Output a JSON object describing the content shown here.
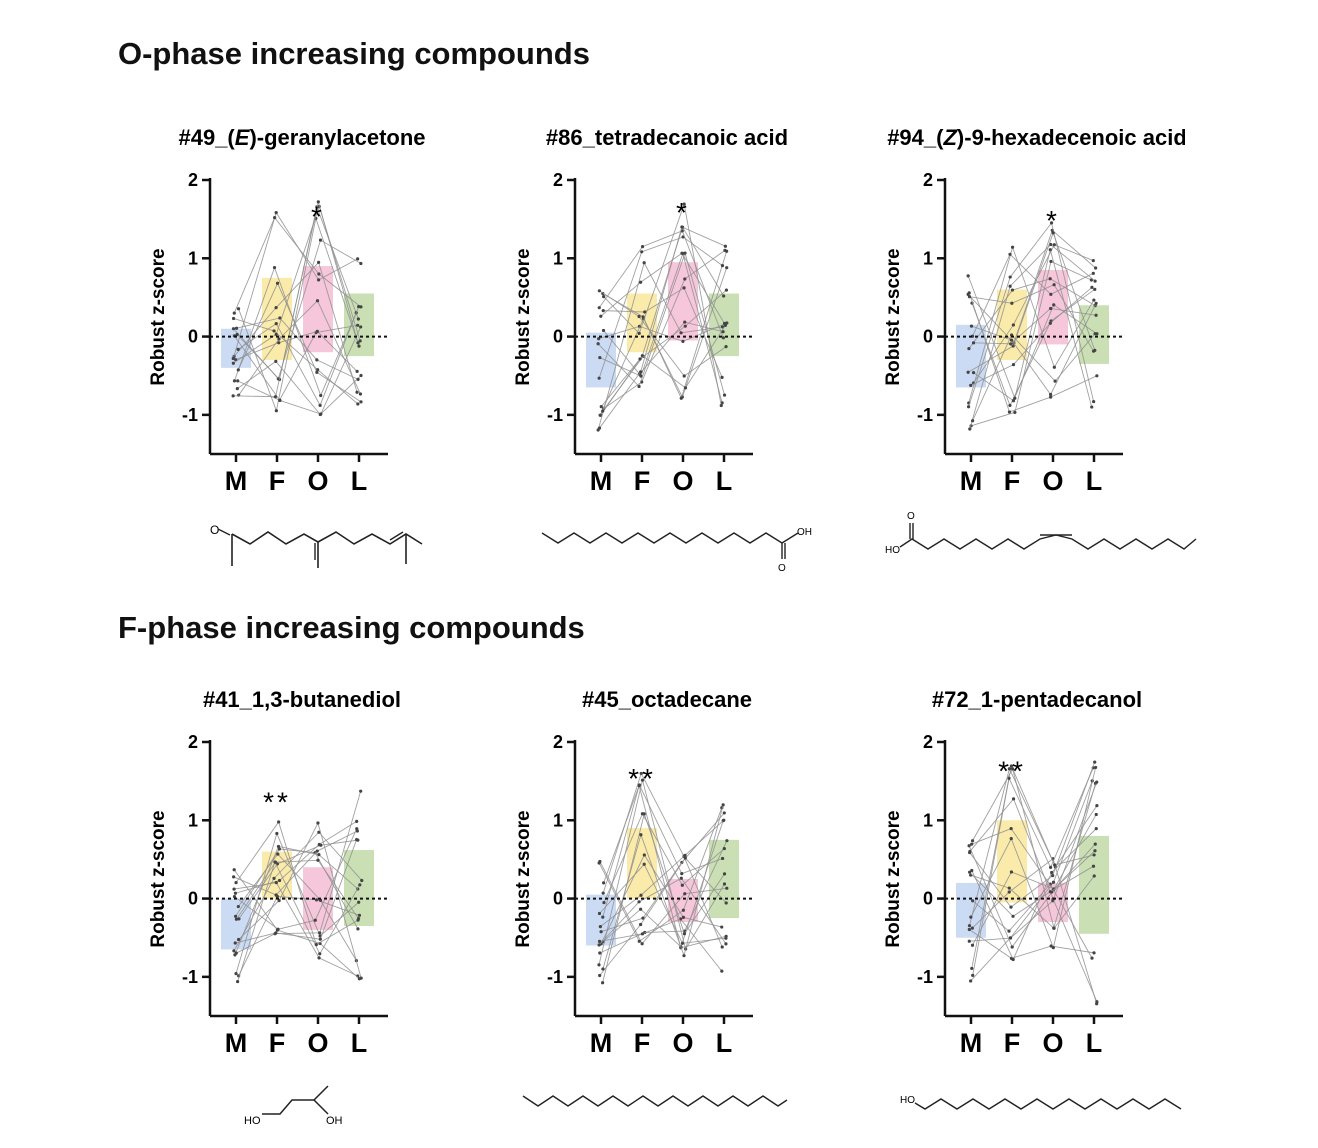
{
  "sections": [
    {
      "title": "O-phase increasing compounds"
    },
    {
      "title": "F-phase increasing compounds"
    }
  ],
  "ylabel": "Robust z-score",
  "chart_data": [
    {
      "type": "bar",
      "title": "#49_(E)-geranylacetone",
      "title_parts": [
        "#49_(",
        "E",
        ")-geranylacetone"
      ],
      "categories": [
        "M",
        "F",
        "O",
        "L"
      ],
      "ylabel": "Robust z-score",
      "ylim": [
        -1.5,
        2
      ],
      "yticks": [
        "2",
        "1",
        "0",
        "-1"
      ],
      "bars": [
        {
          "low": -0.4,
          "high": 0.1
        },
        {
          "low": -0.3,
          "high": 0.75
        },
        {
          "low": -0.2,
          "high": 0.9
        },
        {
          "low": -0.25,
          "high": 0.55
        }
      ],
      "significance": {
        "category": "O",
        "label": "*"
      },
      "colors": [
        "#c9d9f3",
        "#fbeaa6",
        "#f6c3d8",
        "#c7deb0"
      ],
      "structure_labels": [
        "O"
      ]
    },
    {
      "type": "bar",
      "title": "#86_tetradecanoic acid",
      "title_parts": [
        "#86_tetradecanoic acid",
        "",
        ""
      ],
      "categories": [
        "M",
        "F",
        "O",
        "L"
      ],
      "ylabel": "Robust z-score",
      "ylim": [
        -1.5,
        2
      ],
      "yticks": [
        "2",
        "1",
        "0",
        "-1"
      ],
      "bars": [
        {
          "low": -0.65,
          "high": 0.05
        },
        {
          "low": -0.2,
          "high": 0.55
        },
        {
          "low": -0.05,
          "high": 0.95
        },
        {
          "low": -0.25,
          "high": 0.55
        }
      ],
      "significance": {
        "category": "O",
        "label": "*"
      },
      "colors": [
        "#c9d9f3",
        "#fbeaa6",
        "#f6c3d8",
        "#c7deb0"
      ],
      "structure_labels": [
        "OH",
        "O"
      ]
    },
    {
      "type": "bar",
      "title": "#94_(Z)-9-hexadecenoic acid",
      "title_parts": [
        "#94_(",
        "Z",
        ")-9-hexadecenoic acid"
      ],
      "categories": [
        "M",
        "F",
        "O",
        "L"
      ],
      "ylabel": "Robust z-score",
      "ylim": [
        -1.5,
        2
      ],
      "yticks": [
        "2",
        "1",
        "0",
        "-1"
      ],
      "bars": [
        {
          "low": -0.65,
          "high": 0.15
        },
        {
          "low": -0.3,
          "high": 0.6
        },
        {
          "low": -0.1,
          "high": 0.85
        },
        {
          "low": -0.35,
          "high": 0.4
        }
      ],
      "significance": {
        "category": "O",
        "label": "*"
      },
      "colors": [
        "#c9d9f3",
        "#fbeaa6",
        "#f6c3d8",
        "#c7deb0"
      ],
      "structure_labels": [
        "O",
        "HO"
      ]
    },
    {
      "type": "bar",
      "title": "#41_1,3-butanediol",
      "title_parts": [
        "#41_1,3-butanediol",
        "",
        ""
      ],
      "categories": [
        "M",
        "F",
        "O",
        "L"
      ],
      "ylabel": "Robust z-score",
      "ylim": [
        -1.5,
        2
      ],
      "yticks": [
        "2",
        "1",
        "0",
        "-1"
      ],
      "bars": [
        {
          "low": -0.65,
          "high": 0.0
        },
        {
          "low": 0.0,
          "high": 0.6
        },
        {
          "low": -0.4,
          "high": 0.4
        },
        {
          "low": -0.35,
          "high": 0.62
        }
      ],
      "significance": {
        "category": "F",
        "label": "**"
      },
      "colors": [
        "#c9d9f3",
        "#fbeaa6",
        "#f6c3d8",
        "#c7deb0"
      ],
      "structure_labels": [
        "HO",
        "OH"
      ]
    },
    {
      "type": "bar",
      "title": "#45_octadecane",
      "title_parts": [
        "#45_octadecane",
        "",
        ""
      ],
      "categories": [
        "M",
        "F",
        "O",
        "L"
      ],
      "ylabel": "Robust z-score",
      "ylim": [
        -1.5,
        2
      ],
      "yticks": [
        "2",
        "1",
        "0",
        "-1"
      ],
      "bars": [
        {
          "low": -0.6,
          "high": 0.05
        },
        {
          "low": 0.0,
          "high": 0.9
        },
        {
          "low": -0.3,
          "high": 0.25
        },
        {
          "low": -0.25,
          "high": 0.75
        }
      ],
      "significance": {
        "category": "F",
        "label": "**"
      },
      "colors": [
        "#c9d9f3",
        "#fbeaa6",
        "#f6c3d8",
        "#c7deb0"
      ],
      "structure_labels": []
    },
    {
      "type": "bar",
      "title": "#72_1-pentadecanol",
      "title_parts": [
        "#72_1-pentadecanol",
        "",
        ""
      ],
      "categories": [
        "M",
        "F",
        "O",
        "L"
      ],
      "ylabel": "Robust z-score",
      "ylim": [
        -1.5,
        2
      ],
      "yticks": [
        "2",
        "1",
        "0",
        "-1"
      ],
      "bars": [
        {
          "low": -0.5,
          "high": 0.2
        },
        {
          "low": -0.05,
          "high": 1.0
        },
        {
          "low": -0.3,
          "high": 0.2
        },
        {
          "low": -0.45,
          "high": 0.8
        }
      ],
      "significance": {
        "category": "F",
        "label": "**"
      },
      "colors": [
        "#c9d9f3",
        "#fbeaa6",
        "#f6c3d8",
        "#c7deb0"
      ],
      "structure_labels": [
        "HO"
      ]
    }
  ]
}
